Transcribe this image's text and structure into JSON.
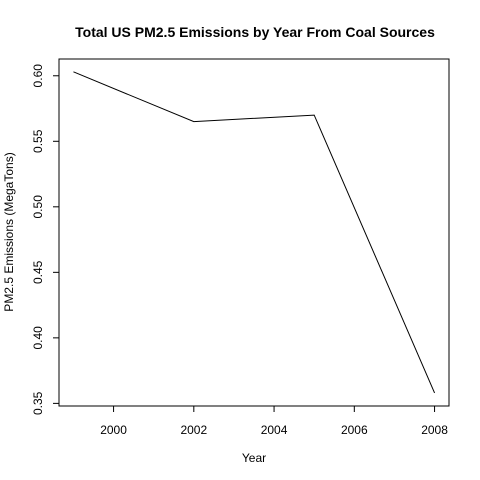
{
  "chart_data": {
    "type": "line",
    "title": "Total US PM2.5 Emissions by Year From Coal Sources",
    "xlabel": "Year",
    "ylabel": "PM2.5 Emissions (MegaTons)",
    "x": [
      1999,
      2002,
      2005,
      2008
    ],
    "series": [
      {
        "values": [
          0.603,
          0.565,
          0.57,
          0.358
        ]
      }
    ],
    "xlim": [
      1998.64,
      2008.36
    ],
    "ylim": [
      0.348,
      0.6128
    ],
    "xticks": [
      2000,
      2002,
      2004,
      2006,
      2008
    ],
    "xtick_labels": [
      "2000",
      "2002",
      "2004",
      "2006",
      "2008"
    ],
    "yticks": [
      0.35,
      0.4,
      0.45,
      0.5,
      0.55,
      0.6
    ],
    "ytick_labels": [
      "0.35",
      "0.40",
      "0.45",
      "0.50",
      "0.55",
      "0.60"
    ],
    "grid": false,
    "legend": "none",
    "colors": {
      "line": "#000000",
      "background": "#ffffff"
    }
  }
}
